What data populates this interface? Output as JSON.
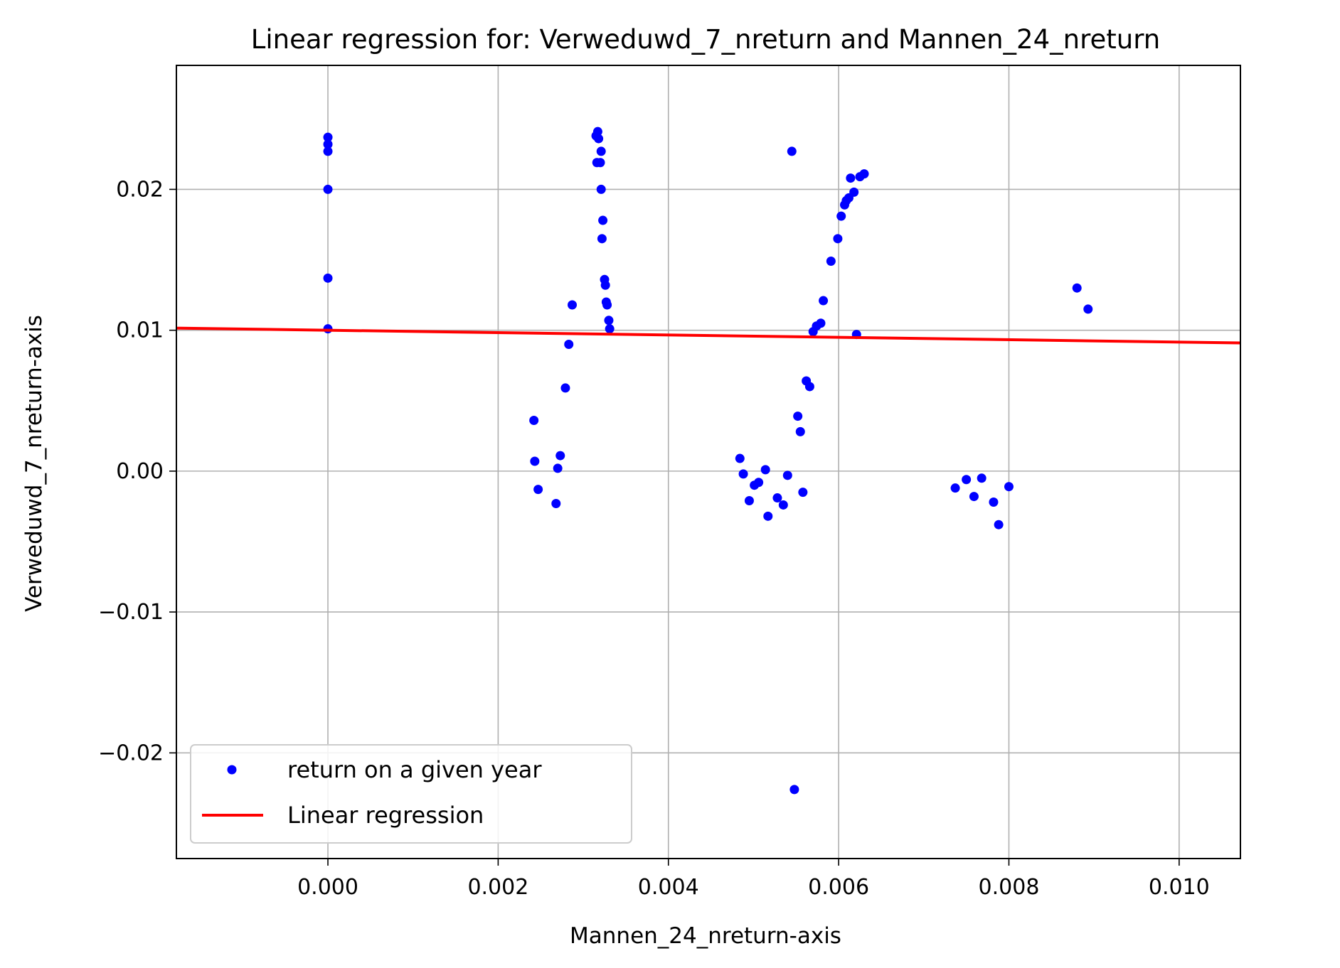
{
  "chart_data": {
    "type": "scatter",
    "title": "Linear regression for: Verweduwd_7_nreturn and Mannen_24_nreturn",
    "xlabel": "Mannen_24_nreturn-axis",
    "ylabel": "Verweduwd_7_nreturn-axis",
    "xlim": [
      -0.00178,
      0.01072
    ],
    "ylim": [
      -0.0275,
      0.0288
    ],
    "x_ticks": [
      0.0,
      0.002,
      0.004,
      0.006,
      0.008,
      0.01
    ],
    "x_tick_labels": [
      "0.000",
      "0.002",
      "0.004",
      "0.006",
      "0.008",
      "0.010"
    ],
    "y_ticks": [
      -0.02,
      -0.01,
      0.0,
      0.01,
      0.02
    ],
    "y_tick_labels": [
      "−0.02",
      "−0.01",
      "0.00",
      "0.01",
      "0.02"
    ],
    "grid": true,
    "legend_position": "lower-left",
    "series": [
      {
        "name": "return on a given year",
        "kind": "scatter",
        "color": "#0000ff",
        "points": [
          [
            0.0,
            0.0237
          ],
          [
            0.0,
            0.0232
          ],
          [
            0.0,
            0.0227
          ],
          [
            0.0,
            0.02
          ],
          [
            0.0,
            0.0137
          ],
          [
            0.0,
            0.0101
          ],
          [
            0.00242,
            0.0036
          ],
          [
            0.00243,
            0.0007
          ],
          [
            0.00247,
            -0.0013
          ],
          [
            0.00268,
            -0.0023
          ],
          [
            0.0027,
            0.0002
          ],
          [
            0.00273,
            0.0011
          ],
          [
            0.00279,
            0.0059
          ],
          [
            0.00283,
            0.009
          ],
          [
            0.00287,
            0.0118
          ],
          [
            0.00315,
            0.0238
          ],
          [
            0.00317,
            0.0241
          ],
          [
            0.00318,
            0.0236
          ],
          [
            0.00316,
            0.0219
          ],
          [
            0.0032,
            0.0219
          ],
          [
            0.00321,
            0.0227
          ],
          [
            0.00321,
            0.02
          ],
          [
            0.00323,
            0.0178
          ],
          [
            0.00322,
            0.0165
          ],
          [
            0.00325,
            0.0136
          ],
          [
            0.00326,
            0.0132
          ],
          [
            0.00327,
            0.012
          ],
          [
            0.00328,
            0.0118
          ],
          [
            0.0033,
            0.0107
          ],
          [
            0.00331,
            0.0101
          ],
          [
            0.00484,
            0.0009
          ],
          [
            0.00488,
            -0.0002
          ],
          [
            0.00495,
            -0.0021
          ],
          [
            0.00501,
            -0.001
          ],
          [
            0.00506,
            -0.0008
          ],
          [
            0.00514,
            0.0001
          ],
          [
            0.00517,
            -0.0032
          ],
          [
            0.00528,
            -0.0019
          ],
          [
            0.00535,
            -0.0024
          ],
          [
            0.0054,
            -0.0003
          ],
          [
            0.00545,
            0.0227
          ],
          [
            0.00548,
            -0.0226
          ],
          [
            0.00552,
            0.0039
          ],
          [
            0.00555,
            0.0028
          ],
          [
            0.00558,
            -0.0015
          ],
          [
            0.00562,
            0.0064
          ],
          [
            0.00566,
            0.006
          ],
          [
            0.0057,
            0.0099
          ],
          [
            0.00574,
            0.0103
          ],
          [
            0.00579,
            0.0105
          ],
          [
            0.00582,
            0.0121
          ],
          [
            0.00591,
            0.0149
          ],
          [
            0.00599,
            0.0165
          ],
          [
            0.00603,
            0.0181
          ],
          [
            0.00607,
            0.0189
          ],
          [
            0.00609,
            0.0192
          ],
          [
            0.00612,
            0.0194
          ],
          [
            0.00614,
            0.0208
          ],
          [
            0.00618,
            0.0198
          ],
          [
            0.00621,
            0.0097
          ],
          [
            0.00625,
            0.0209
          ],
          [
            0.0063,
            0.0211
          ],
          [
            0.00737,
            -0.0012
          ],
          [
            0.0075,
            -0.0006
          ],
          [
            0.00759,
            -0.0018
          ],
          [
            0.00768,
            -0.0005
          ],
          [
            0.00782,
            -0.0022
          ],
          [
            0.00788,
            -0.0038
          ],
          [
            0.008,
            -0.0011
          ],
          [
            0.0088,
            0.013
          ],
          [
            0.00893,
            0.0115
          ]
        ]
      },
      {
        "name": "Linear regression",
        "kind": "line",
        "color": "#ff0000",
        "x": [
          -0.00178,
          0.01072
        ],
        "y": [
          0.01015,
          0.0091
        ]
      }
    ]
  }
}
